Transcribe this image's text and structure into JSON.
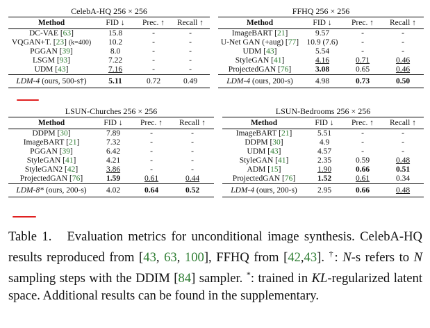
{
  "celeba": {
    "title": "CelebA-HQ 256 × 256",
    "headers": {
      "method": "Method",
      "fid": "FID ↓",
      "prec": "Prec. ↑",
      "recall": "Recall ↑"
    },
    "rows": [
      {
        "name": "DC-VAE",
        "ref": "63",
        "fid": "15.8",
        "prec": "-",
        "recall": "-"
      },
      {
        "name": "VQGAN+T.",
        "ref": "23",
        "extra": "(k=400)",
        "fid": "10.2",
        "prec": "-",
        "recall": "-"
      },
      {
        "name": "PGGAN",
        "ref": "39",
        "fid": "8.0",
        "prec": "-",
        "recall": "-"
      },
      {
        "name": "LSGM",
        "ref": "93",
        "fid": "7.22",
        "prec": "-",
        "recall": "-"
      },
      {
        "name": "UDM",
        "ref": "43",
        "fid": "7.16",
        "prec": "-",
        "recall": "-"
      }
    ],
    "ours": {
      "name": "LDM-4",
      "note": "(ours, 500-s†)",
      "fid": "5.11",
      "prec": "0.72",
      "recall": "0.49"
    }
  },
  "ffhq": {
    "title": "FFHQ 256 × 256",
    "headers": {
      "method": "Method",
      "fid": "FID ↓",
      "prec": "Prec. ↑",
      "recall": "Recall ↑"
    },
    "rows": [
      {
        "name": "ImageBART",
        "ref": "21",
        "fid": "9.57",
        "prec": "-",
        "recall": "-"
      },
      {
        "name": "U-Net GAN (+aug)",
        "ref": "77",
        "fid": "10.9 (7.6)",
        "prec": "-",
        "recall": "-"
      },
      {
        "name": "UDM",
        "ref": "43",
        "fid": "5.54",
        "prec": "-",
        "recall": "-"
      },
      {
        "name": "StyleGAN",
        "ref": "41",
        "fid": "4.16",
        "prec": "0.71",
        "recall": "0.46"
      },
      {
        "name": "ProjectedGAN",
        "ref": "76",
        "fid": "3.08",
        "prec": "0.65",
        "recall": "0.46"
      }
    ],
    "ours": {
      "name": "LDM-4",
      "note": "(ours, 200-s)",
      "fid": "4.98",
      "prec": "0.73",
      "recall": "0.50"
    }
  },
  "churches": {
    "title": "LSUN-Churches 256 × 256",
    "headers": {
      "method": "Method",
      "fid": "FID ↓",
      "prec": "Prec. ↑",
      "recall": "Recall ↑"
    },
    "rows": [
      {
        "name": "DDPM",
        "ref": "30",
        "fid": "7.89",
        "prec": "-",
        "recall": "-"
      },
      {
        "name": "ImageBART",
        "ref": "21",
        "fid": "7.32",
        "prec": "-",
        "recall": "-"
      },
      {
        "name": "PGGAN",
        "ref": "39",
        "fid": "6.42",
        "prec": "-",
        "recall": "-"
      },
      {
        "name": "StyleGAN",
        "ref": "41",
        "fid": "4.21",
        "prec": "-",
        "recall": "-"
      },
      {
        "name": "StyleGAN2",
        "ref": "42",
        "fid": "3.86",
        "prec": "-",
        "recall": "-"
      },
      {
        "name": "ProjectedGAN",
        "ref": "76",
        "fid": "1.59",
        "prec": "0.61",
        "recall": "0.44"
      }
    ],
    "ours": {
      "name": "LDM-8*",
      "note": "(ours, 200-s)",
      "fid": "4.02",
      "prec": "0.64",
      "recall": "0.52"
    }
  },
  "bedrooms": {
    "title": "LSUN-Bedrooms 256 × 256",
    "headers": {
      "method": "Method",
      "fid": "FID ↓",
      "prec": "Prec. ↑",
      "recall": "Recall ↑"
    },
    "rows": [
      {
        "name": "ImageBART",
        "ref": "21",
        "fid": "5.51",
        "prec": "-",
        "recall": "-"
      },
      {
        "name": "DDPM",
        "ref": "30",
        "fid": "4.9",
        "prec": "-",
        "recall": "-"
      },
      {
        "name": "UDM",
        "ref": "43",
        "fid": "4.57",
        "prec": "-",
        "recall": "-"
      },
      {
        "name": "StyleGAN",
        "ref": "41",
        "fid": "2.35",
        "prec": "0.59",
        "recall": "0.48"
      },
      {
        "name": "ADM",
        "ref": "15",
        "fid": "1.90",
        "prec": "0.66",
        "recall": "0.51"
      },
      {
        "name": "ProjectedGAN",
        "ref": "76",
        "fid": "1.52",
        "prec": "0.61",
        "recall": "0.34"
      }
    ],
    "ours": {
      "name": "LDM-4",
      "note": "(ours, 200-s)",
      "fid": "2.95",
      "prec": "0.66",
      "recall": "0.48"
    }
  },
  "caption": {
    "label": "Table 1.",
    "s1": "Evaluation metrics for unconditional image synthesis. CelebA-HQ results reproduced from [",
    "r1": "43",
    "r2": "63",
    "r3": "100",
    "s2": "], FFHQ from [",
    "r4": "42",
    "r5": "43",
    "s3": "].",
    "dagger": "†",
    "s4": ": ",
    "n1": "N",
    "s5": "-s refers to ",
    "n2": "N",
    "s6": " sampling steps with the DDIM [",
    "r6": "84",
    "s7": "] sampler.",
    "star": "*",
    "s8": ": trained in ",
    "kl": "KL",
    "s9": "-regularized latent space. Additional results can be found in the supplementary."
  }
}
